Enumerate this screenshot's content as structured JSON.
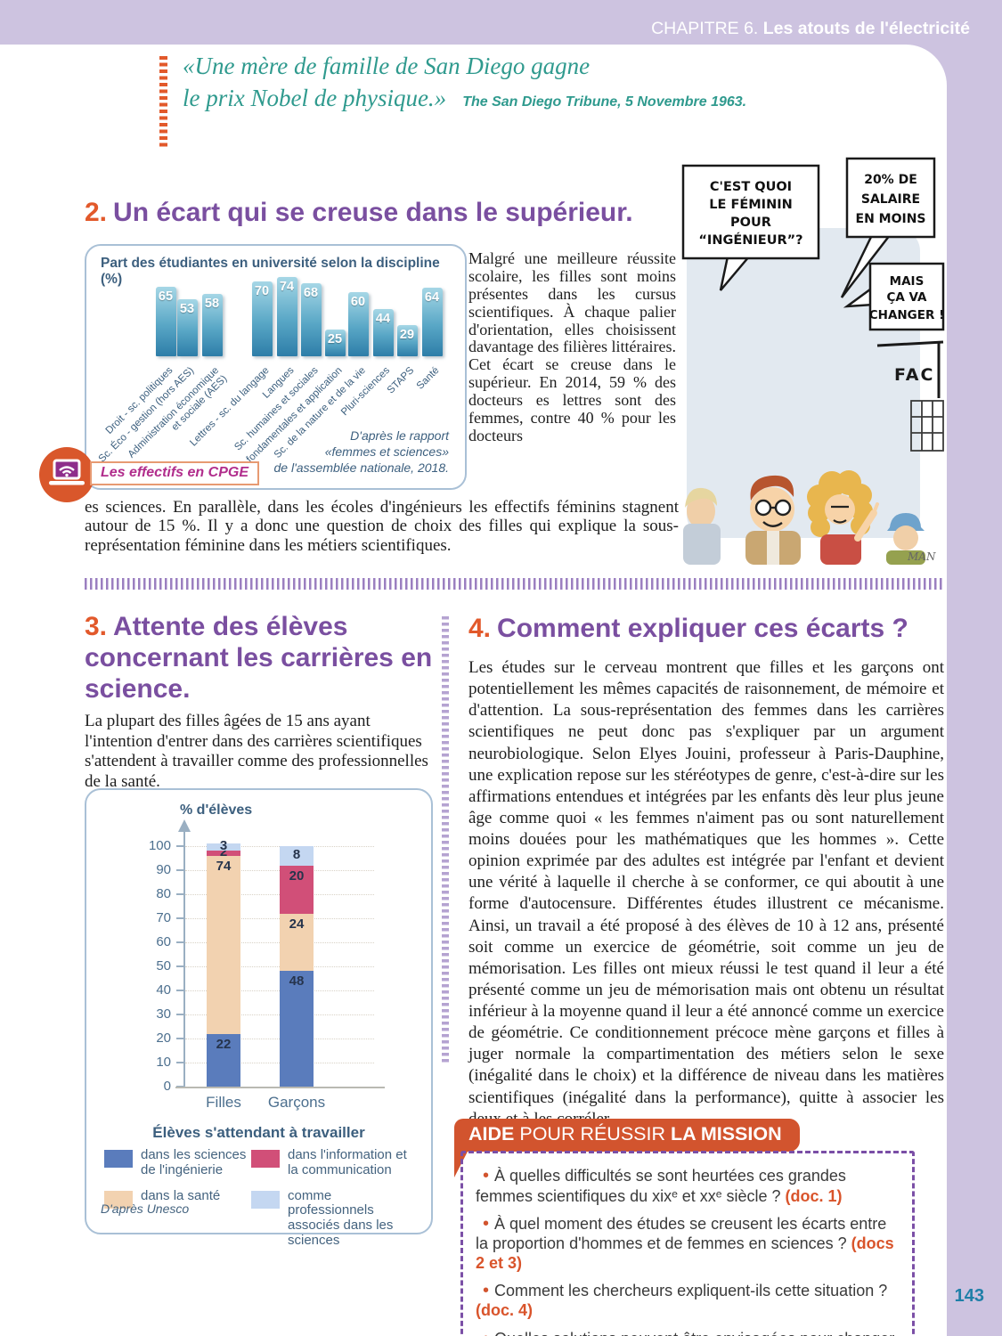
{
  "page": {
    "chapter_label": "CHAPITRE 6.",
    "chapter_title": "Les atouts de l'électricité",
    "page_number": "143"
  },
  "quote": {
    "line1": "«Une mère de famille de San Diego gagne",
    "line2": "le prix Nobel de physique.»",
    "attribution": "The San Diego Tribune, 5 Novembre 1963."
  },
  "section2": {
    "number": "2.",
    "title": "Un écart qui se creuse dans le supérieur.",
    "paragraph_column": "Malgré une meilleure réussite scolaire, les filles sont moins présentes dans les cursus scientifiques. À chaque palier d'orientation, elles choisissent davantage des filières littéraires. Cet écart se creuse dans le supérieur. En 2014, 59 % des docteurs es lettres sont des femmes, contre 40 % pour les docteurs",
    "paragraph_full": "es sciences. En parallèle, dans les écoles d'ingénieurs les effectifs féminins stagnent autour de 15 %. Il y a donc une question de choix des filles qui explique la sous-représentation féminine dans les métiers scientifiques.",
    "badge_label": "Les effectifs en CPGE"
  },
  "section3": {
    "number": "3.",
    "title": "Attente des élèves concernant les carrières en science.",
    "intro": "La plupart des filles âgées de 15 ans ayant l'intention d'entrer dans des carrières scientifiques s'attendent à travailler comme des professionnelles de la santé."
  },
  "section4": {
    "number": "4.",
    "title": "Comment expliquer ces écarts ?",
    "paragraph": "Les études sur le cerveau montrent que filles et les garçons ont potentiellement les mêmes capacités de raisonnement, de mémoire et d'attention. La sous-représentation des femmes dans les carrières scientifiques ne peut donc pas s'expliquer par un argument neurobiologique. Selon Elyes Jouini, professeur à Paris-Dauphine, une explication repose sur les stéréotypes de genre, c'est-à-dire sur les affirmations entendues et intégrées par les enfants dès leur plus jeune âge comme quoi « les femmes n'aiment pas ou sont naturellement moins douées pour les mathématiques que les hommes ». Cette opinion exprimée par des adultes est intégrée par l'enfant et devient une vérité à laquelle il cherche à se conformer, ce qui aboutit à une forme d'autocensure. Différentes études illustrent ce mécanisme. Ainsi, un travail a été proposé à des élèves de 10 à 12 ans, présenté soit comme un exercice de géométrie, soit comme un jeu de mémorisation. Les filles ont mieux réussi le test quand il leur a été présenté comme un jeu de mémorisation mais ont obtenu un résultat inférieur à la moyenne quand il leur a été annoncé comme un exercice de géométrie. Ce conditionnement précoce mène garçons et filles à juger normale la compartimentation des métiers selon le sexe (inégalité dans le choix) et la différence de niveau dans les matières scientifiques (inégalité dans la performance), quitte à associer les deux et à les corréler."
  },
  "cartoon": {
    "bubble1": [
      "C'EST QUOI",
      "LE FÉMININ",
      "POUR",
      "“INGÉNIEUR”?"
    ],
    "bubble2": [
      "20% DE",
      "SALAIRE",
      "EN MOINS"
    ],
    "bubble3": [
      "MAIS",
      "ÇA VA",
      "CHANGER !"
    ],
    "sign": "FAC",
    "signature": "MAN"
  },
  "aide": {
    "head_1": "AIDE",
    "head_2": " POUR RÉUSSIR ",
    "head_3": "LA MISSION",
    "bullets": [
      {
        "text": "À quelles difficultés se sont heurtées ces grandes femmes scientifiques du xixᵉ et xxᵉ siècle ? ",
        "doc": "(doc. 1)"
      },
      {
        "text": "À quel moment des études se creusent les écarts entre la proportion d'hommes et de femmes en sciences ? ",
        "doc": "(docs 2 et 3)"
      },
      {
        "text": "Comment les chercheurs expliquent-ils cette situation ? ",
        "doc": "(doc. 4)"
      },
      {
        "text": "Quelles solutions peuvent être envisagées pour changer la représentation que les petites filles peuvent se faire des métiers scientifiques ?",
        "doc": ""
      }
    ]
  },
  "chart_data": [
    {
      "type": "bar",
      "title": "Part des étudiantes en université selon la discipline (%)",
      "categories": [
        "Droit - sc. politiques",
        "Sc. Éco - gestion (hors AES)",
        "Administration économique\net sociale (AES)",
        "Lettres - sc. du langage",
        "Langues",
        "Sc. humaines et sociales",
        "Sc. fondamentales et application",
        "Sc. de la nature et de la vie",
        "Pluri-sciences",
        "STAPS",
        "Santé"
      ],
      "values": [
        65,
        53,
        58,
        70,
        74,
        68,
        25,
        60,
        44,
        29,
        64
      ],
      "ylim": [
        0,
        100
      ],
      "group_break_after_index": 2,
      "source": "D'après le rapport\n«femmes et sciences»\nde l'assemblée nationale, 2018."
    },
    {
      "type": "stacked-bar",
      "ylabel": "% d'élèves",
      "categories": [
        "Filles",
        "Garçons"
      ],
      "yticks": [
        0,
        10,
        20,
        30,
        40,
        50,
        60,
        70,
        80,
        90,
        100
      ],
      "ylim": [
        0,
        100
      ],
      "series": [
        {
          "name": "dans les sciences de l'ingénierie",
          "color": "#5a7cbc",
          "values": [
            22,
            48
          ]
        },
        {
          "name": "dans la santé",
          "color": "#f2d2b0",
          "values": [
            74,
            24
          ]
        },
        {
          "name": "dans l'information et la communication",
          "color": "#d14f78",
          "values": [
            2,
            20
          ]
        },
        {
          "name": "comme professionnels associés dans les sciences",
          "color": "#c4d7f1",
          "values": [
            3,
            8
          ]
        }
      ],
      "legend_title": "Élèves s'attendant à travailler",
      "legend_order": [
        0,
        2,
        1,
        3
      ],
      "legend_position": "bottom",
      "grid": true,
      "source": "D'après Unesco"
    }
  ]
}
